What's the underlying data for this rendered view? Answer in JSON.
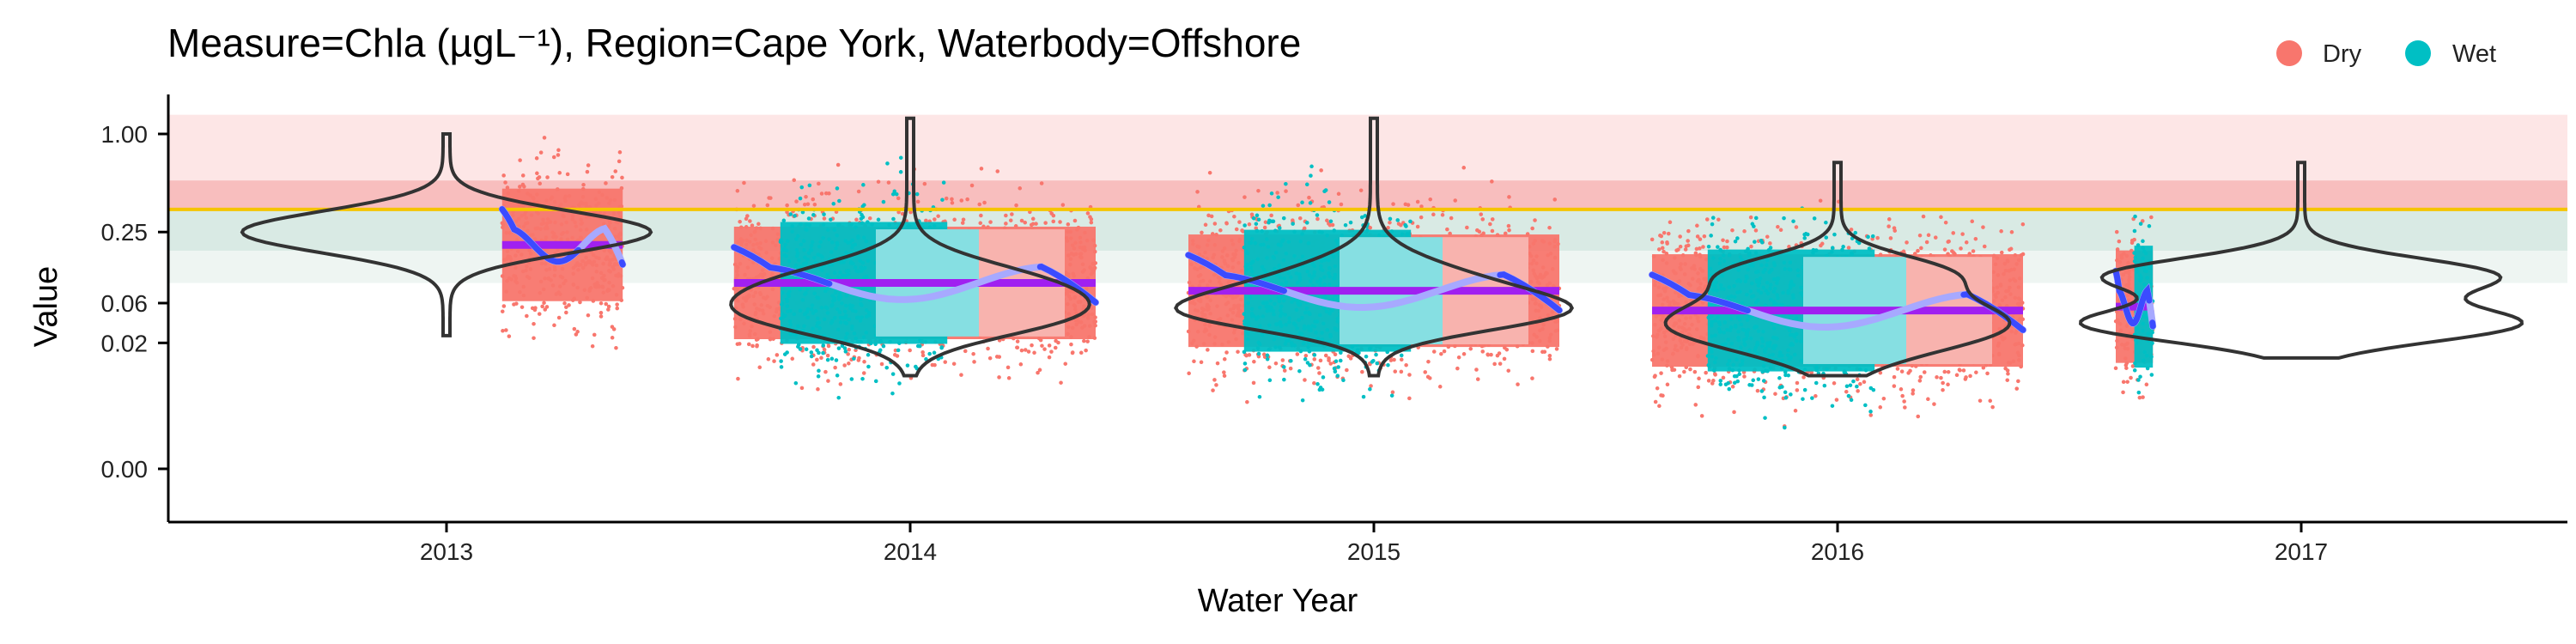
{
  "chart_data": {
    "type": "violin-scatter",
    "title": "Measure=Chla (µgL⁻¹), Region=Cape York, Waterbody=Offshore",
    "xlabel": "Water Year",
    "ylabel": "Value",
    "x_ticks": [
      "2013",
      "2014",
      "2015",
      "2016",
      "2017"
    ],
    "y_ticks": [
      "1.00",
      "0.25",
      "0.06",
      "0.02",
      "0.00"
    ],
    "ylim": [
      -0.4,
      4.6
    ],
    "guideline_value": 0.36,
    "legend": {
      "position": "top-right",
      "entries": [
        {
          "label": "Dry",
          "color": "#F8766D"
        },
        {
          "label": "Wet",
          "color": "#00BFC4"
        }
      ]
    },
    "colors": {
      "dry": "#F8766D",
      "wet": "#00BFC4",
      "dry_light": "#F8B3AE",
      "wet_light": "#86DFE2",
      "guideline": "#F5C400",
      "annual_mean": "#A020F0",
      "annual_mean_light": "#C880F8",
      "trend": "#3B4BFF",
      "trend_light": "#A7A9FF",
      "violin": "#333333",
      "band_very_poor": "#FDE6E6",
      "band_poor": "#F8BEBE",
      "band_good": "#D9EAE4",
      "band_very_good": "#EEF5F2"
    },
    "years": [
      {
        "year": "2013",
        "dry_span": [
          2013.12,
          2013.38
        ],
        "wet_span": null,
        "annual_mean": 0.2,
        "violin_modes": [
          [
            0.25,
            0.9,
            0.35
          ]
        ],
        "violin_range": [
          0.025,
          1.0
        ]
      },
      {
        "year": "2014",
        "dry_span": [
          2013.62,
          2014.4
        ],
        "wet_span": [
          2013.72,
          2014.08
        ],
        "annual_mean": 0.095,
        "violin_modes": [
          [
            0.09,
            0.55,
            0.4
          ],
          [
            0.04,
            0.5,
            0.35
          ]
        ],
        "violin_range": [
          0.006,
          1.2
        ]
      },
      {
        "year": "2015",
        "dry_span": [
          2014.6,
          2015.4
        ],
        "wet_span": [
          2014.72,
          2015.08
        ],
        "annual_mean": 0.08,
        "violin_modes": [
          [
            0.08,
            0.5,
            0.45
          ],
          [
            0.045,
            0.5,
            0.3
          ]
        ],
        "violin_range": [
          0.006,
          1.2
        ]
      },
      {
        "year": "2016",
        "dry_span": [
          2015.6,
          2016.4
        ],
        "wet_span": [
          2015.72,
          2016.08
        ],
        "annual_mean": 0.05,
        "violin_modes": [
          [
            0.035,
            0.75,
            0.45
          ],
          [
            0.12,
            0.4,
            0.3
          ]
        ],
        "violin_range": [
          0.006,
          0.7
        ]
      },
      {
        "year": "2017",
        "dry_span": [
          2016.6,
          2016.68
        ],
        "wet_span": [
          2016.64,
          2016.68
        ],
        "annual_mean": 0.055,
        "violin_modes": [
          [
            0.11,
            0.85,
            0.3
          ],
          [
            0.035,
            0.95,
            0.3
          ]
        ],
        "violin_range": [
          0.012,
          0.7
        ]
      }
    ]
  }
}
